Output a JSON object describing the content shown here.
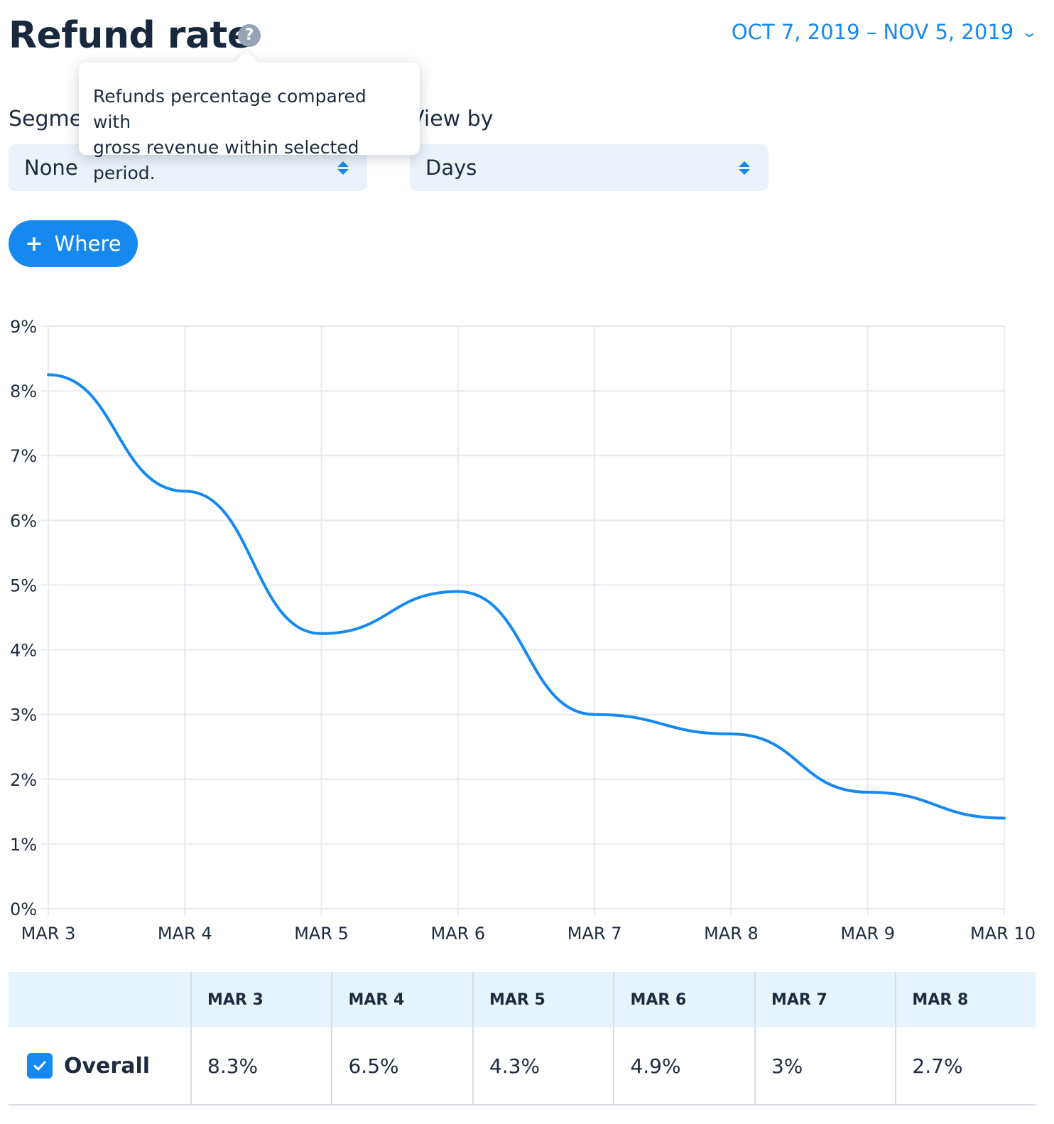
{
  "header": {
    "title": "Refund rate",
    "help_icon": "question-circle-icon",
    "date_range": "OCT 7, 2019 – NOV 5, 2019",
    "date_chevron": "chevron-down-icon"
  },
  "tooltip": {
    "line1": "Refunds percentage compared with",
    "line2": "gross revenue within selected period."
  },
  "filters": {
    "segment_label": "Segment",
    "segment_value": "None",
    "view_by_label": "View by",
    "view_by_value": "Days",
    "where_button": "Where"
  },
  "colors": {
    "accent": "#1589f0",
    "title": "#17283f",
    "select_bg": "#ecf2f9",
    "table_header_bg": "#e7f3fd"
  },
  "chart_data": {
    "type": "line",
    "x": [
      "MAR 3",
      "MAR 4",
      "MAR 5",
      "MAR 6",
      "MAR 7",
      "MAR 8",
      "MAR 9",
      "MAR 10"
    ],
    "series": [
      {
        "values": [
          8.25,
          6.45,
          4.25,
          4.9,
          3.0,
          2.7,
          1.8,
          1.4
        ]
      }
    ],
    "y_ticks": [
      "0%",
      "1%",
      "2%",
      "3%",
      "4%",
      "5%",
      "6%",
      "7%",
      "8%",
      "9%"
    ],
    "ylim": [
      0,
      9
    ],
    "grid": true,
    "line_color": "#1589f0"
  },
  "table": {
    "columns": [
      "MAR 3",
      "MAR 4",
      "MAR 5",
      "MAR 6",
      "MAR 7",
      "MAR 8"
    ],
    "rows": [
      {
        "label": "Overall",
        "checked": true,
        "values": [
          "8.3%",
          "6.5%",
          "4.3%",
          "4.9%",
          "3%",
          "2.7%"
        ]
      }
    ]
  }
}
